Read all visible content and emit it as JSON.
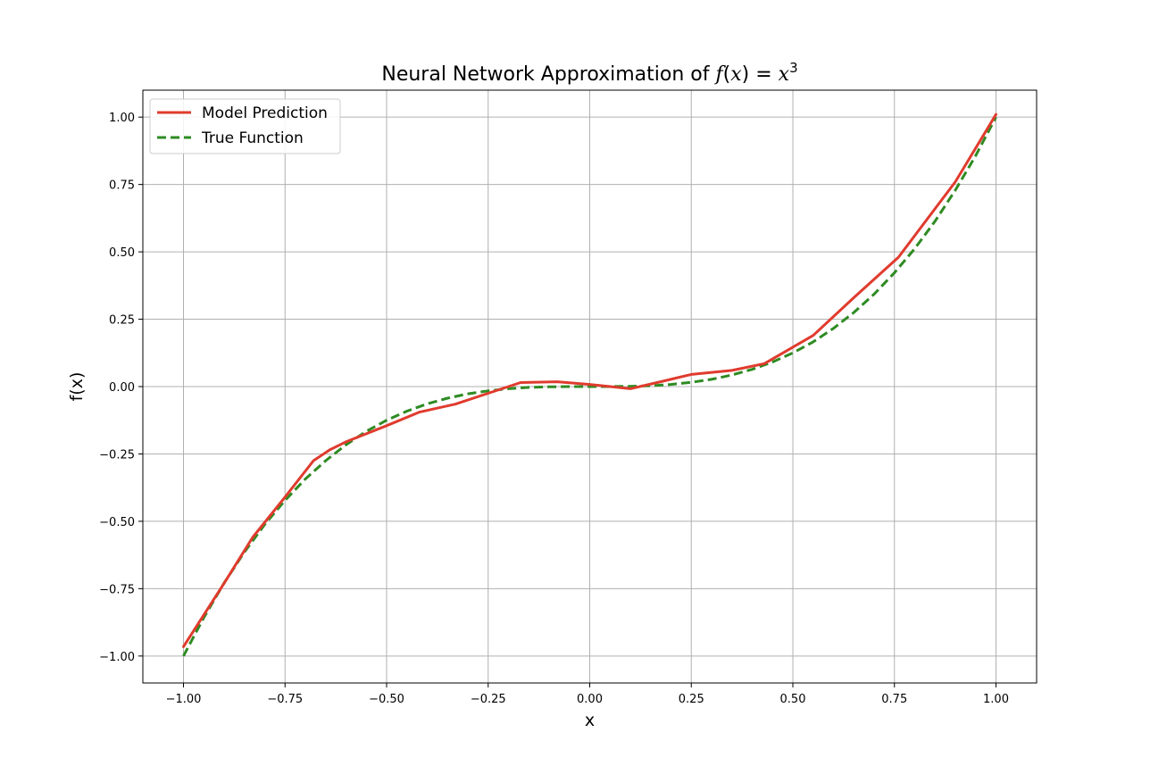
{
  "chart_data": {
    "type": "line",
    "title": {
      "prefix": "Neural Network Approximation of ",
      "math_fn": "f",
      "math_open": "(",
      "math_var": "x",
      "math_close": ")",
      "math_eq": " = ",
      "math_base": "x",
      "math_exp": "3"
    },
    "xlabel": "x",
    "ylabel": "f(x)",
    "xlim": [
      -1.1,
      1.1
    ],
    "ylim": [
      -1.1,
      1.1
    ],
    "xticks": [
      -1.0,
      -0.75,
      -0.5,
      -0.25,
      0.0,
      0.25,
      0.5,
      0.75,
      1.0
    ],
    "xtick_labels": [
      "−1.00",
      "−0.75",
      "−0.50",
      "−0.25",
      "0.00",
      "0.25",
      "0.50",
      "0.75",
      "1.00"
    ],
    "yticks": [
      -1.0,
      -0.75,
      -0.5,
      -0.25,
      0.0,
      0.25,
      0.5,
      0.75,
      1.0
    ],
    "ytick_labels": [
      "−1.00",
      "−0.75",
      "−0.50",
      "−0.25",
      "0.00",
      "0.25",
      "0.50",
      "0.75",
      "1.00"
    ],
    "grid": true,
    "legend": "top-left",
    "series": [
      {
        "name": "Model Prediction",
        "color": "#e03b2e",
        "style": "solid",
        "x": [
          -1.0,
          -0.9,
          -0.83,
          -0.75,
          -0.68,
          -0.64,
          -0.6,
          -0.5,
          -0.42,
          -0.33,
          -0.25,
          -0.17,
          -0.08,
          0.0,
          0.1,
          0.18,
          0.25,
          0.35,
          0.43,
          0.55,
          0.65,
          0.76,
          0.9,
          1.0
        ],
        "y": [
          -0.965,
          -0.73,
          -0.56,
          -0.41,
          -0.275,
          -0.235,
          -0.205,
          -0.145,
          -0.095,
          -0.065,
          -0.025,
          0.015,
          0.018,
          0.008,
          -0.008,
          0.02,
          0.045,
          0.06,
          0.085,
          0.19,
          0.33,
          0.48,
          0.76,
          1.01
        ]
      },
      {
        "name": "True Function",
        "color": "#2e8b22",
        "style": "dashed",
        "x": [
          -1.0,
          -0.95,
          -0.9,
          -0.85,
          -0.8,
          -0.75,
          -0.7,
          -0.65,
          -0.6,
          -0.55,
          -0.5,
          -0.45,
          -0.4,
          -0.35,
          -0.3,
          -0.25,
          -0.2,
          -0.15,
          -0.1,
          -0.05,
          0.0,
          0.05,
          0.1,
          0.15,
          0.2,
          0.25,
          0.3,
          0.35,
          0.4,
          0.45,
          0.5,
          0.55,
          0.6,
          0.65,
          0.7,
          0.75,
          0.8,
          0.85,
          0.9,
          0.95,
          1.0
        ],
        "y": [
          -1.0,
          -0.857,
          -0.729,
          -0.614,
          -0.512,
          -0.422,
          -0.343,
          -0.275,
          -0.216,
          -0.166,
          -0.125,
          -0.091,
          -0.064,
          -0.043,
          -0.027,
          -0.016,
          -0.008,
          -0.003,
          -0.001,
          0.0,
          0.0,
          0.0,
          0.001,
          0.003,
          0.008,
          0.016,
          0.027,
          0.043,
          0.064,
          0.091,
          0.125,
          0.166,
          0.216,
          0.275,
          0.343,
          0.422,
          0.512,
          0.614,
          0.729,
          0.857,
          1.0
        ]
      }
    ]
  }
}
